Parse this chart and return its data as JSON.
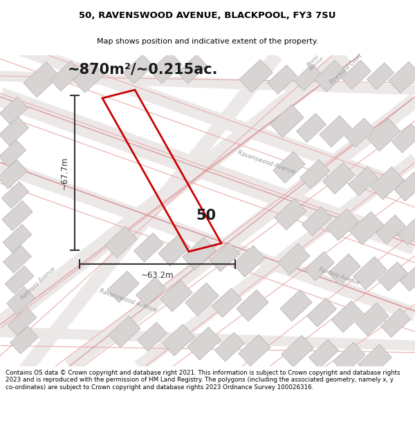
{
  "title_line1": "50, RAVENSWOOD AVENUE, BLACKPOOL, FY3 7SU",
  "title_line2": "Map shows position and indicative extent of the property.",
  "area_text": "~870m²/~0.215ac.",
  "property_number": "50",
  "dim_width": "~63.2m",
  "dim_height": "~67.7m",
  "footer_text": "Contains OS data © Crown copyright and database right 2021. This information is subject to Crown copyright and database rights 2023 and is reproduced with the permission of HM Land Registry. The polygons (including the associated geometry, namely x, y co-ordinates) are subject to Crown copyright and database rights 2023 Ordnance Survey 100026316.",
  "bg_color": "#ffffff",
  "map_bg_color": "#f2eeee",
  "building_fill": "#d8d4d4",
  "building_stroke": "#c0bcbc",
  "property_outline_color": "#cc0000",
  "dim_line_color": "#333333",
  "street_color": "#e8a8a8",
  "street_color2": "#d49090"
}
